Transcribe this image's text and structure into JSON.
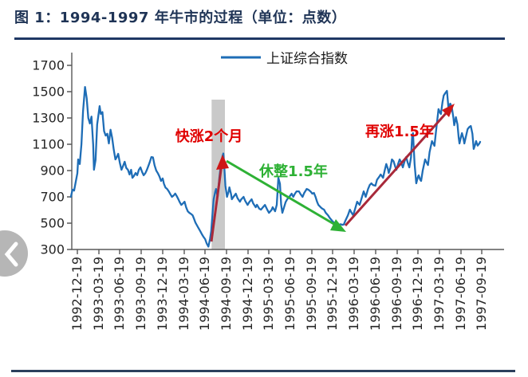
{
  "figure": {
    "title": "图 1：1994-1997 年牛市的过程（单位：点数）"
  },
  "legend": {
    "label": "上证综合指数"
  },
  "annotations": [
    {
      "id": "rally1",
      "text": "快涨2个月"
    },
    {
      "id": "consolidation",
      "text": "休整1.5年"
    },
    {
      "id": "rally2",
      "text": "再涨1.5年"
    }
  ],
  "nav": {
    "prev_icon": "chevron-left"
  },
  "colors": {
    "line": "#1e6db6",
    "band": "#c9c9c9",
    "rally_text": "#e00000",
    "consolidation_green": "#2eb135",
    "arrow_shaft": "#a8293a",
    "arrow_head": "#ce1717",
    "title_navy": "#1f3456",
    "rule_navy": "#1f3864"
  },
  "chart_data": {
    "type": "line",
    "title": "图 1：1994-1997 年牛市的过程（单位：点数）",
    "ylabel": "",
    "xlabel": "",
    "ylim": [
      300,
      1700
    ],
    "grid": false,
    "legend_position": "top-center",
    "y_ticks": [
      "1700",
      "1500",
      "1300",
      "1100",
      "900",
      "700",
      "500",
      "300"
    ],
    "x_ticks": [
      "1992-12-19",
      "1993-03-19",
      "1993-06-19",
      "1993-09-19",
      "1993-12-19",
      "1994-03-19",
      "1994-06-19",
      "1994-09-19",
      "1994-12-19",
      "1995-03-19",
      "1995-06-19",
      "1995-09-19",
      "1995-12-19",
      "1996-03-19",
      "1996-06-19",
      "1996-09-19",
      "1996-12-19",
      "1997-03-19",
      "1997-06-19",
      "1997-09-19"
    ],
    "highlight_band": {
      "from_frac": 0.332,
      "to_frac": 0.365
    },
    "series": [
      {
        "name": "上证综合指数",
        "points": [
          [
            -0.016,
            700
          ],
          [
            -0.012,
            755
          ],
          [
            -0.008,
            748
          ],
          [
            0.0,
            880
          ],
          [
            0.002,
            985
          ],
          [
            0.006,
            950
          ],
          [
            0.01,
            1100
          ],
          [
            0.014,
            1350
          ],
          [
            0.019,
            1536
          ],
          [
            0.023,
            1450
          ],
          [
            0.027,
            1300
          ],
          [
            0.031,
            1258
          ],
          [
            0.035,
            1310
          ],
          [
            0.039,
            1100
          ],
          [
            0.041,
            906
          ],
          [
            0.045,
            980
          ],
          [
            0.049,
            1250
          ],
          [
            0.055,
            1390
          ],
          [
            0.058,
            1330
          ],
          [
            0.062,
            1345
          ],
          [
            0.066,
            1200
          ],
          [
            0.07,
            1166
          ],
          [
            0.074,
            1180
          ],
          [
            0.078,
            1106
          ],
          [
            0.082,
            1210
          ],
          [
            0.086,
            1150
          ],
          [
            0.09,
            1060
          ],
          [
            0.094,
            985
          ],
          [
            0.097,
            1000
          ],
          [
            0.101,
            1027
          ],
          [
            0.105,
            960
          ],
          [
            0.109,
            906
          ],
          [
            0.113,
            935
          ],
          [
            0.117,
            967
          ],
          [
            0.121,
            920
          ],
          [
            0.125,
            906
          ],
          [
            0.129,
            870
          ],
          [
            0.133,
            906
          ],
          [
            0.136,
            845
          ],
          [
            0.14,
            860
          ],
          [
            0.144,
            882
          ],
          [
            0.148,
            865
          ],
          [
            0.152,
            906
          ],
          [
            0.156,
            924
          ],
          [
            0.16,
            890
          ],
          [
            0.164,
            864
          ],
          [
            0.168,
            880
          ],
          [
            0.172,
            906
          ],
          [
            0.175,
            930
          ],
          [
            0.179,
            965
          ],
          [
            0.183,
            1003
          ],
          [
            0.187,
            1000
          ],
          [
            0.191,
            940
          ],
          [
            0.195,
            900
          ],
          [
            0.199,
            880
          ],
          [
            0.203,
            855
          ],
          [
            0.207,
            821
          ],
          [
            0.211,
            840
          ],
          [
            0.214,
            800
          ],
          [
            0.218,
            770
          ],
          [
            0.222,
            760
          ],
          [
            0.226,
            742
          ],
          [
            0.23,
            720
          ],
          [
            0.234,
            700
          ],
          [
            0.238,
            710
          ],
          [
            0.242,
            725
          ],
          [
            0.246,
            705
          ],
          [
            0.25,
            680
          ],
          [
            0.253,
            660
          ],
          [
            0.257,
            639
          ],
          [
            0.261,
            650
          ],
          [
            0.265,
            663
          ],
          [
            0.269,
            620
          ],
          [
            0.273,
            590
          ],
          [
            0.277,
            579
          ],
          [
            0.281,
            570
          ],
          [
            0.285,
            560
          ],
          [
            0.289,
            530
          ],
          [
            0.292,
            505
          ],
          [
            0.296,
            482
          ],
          [
            0.3,
            460
          ],
          [
            0.304,
            439
          ],
          [
            0.308,
            415
          ],
          [
            0.312,
            395
          ],
          [
            0.316,
            379
          ],
          [
            0.32,
            345
          ],
          [
            0.324,
            322
          ],
          [
            0.328,
            380
          ],
          [
            0.331,
            439
          ],
          [
            0.335,
            600
          ],
          [
            0.337,
            682
          ],
          [
            0.341,
            740
          ],
          [
            0.343,
            760
          ],
          [
            0.347,
            700
          ],
          [
            0.351,
            845
          ],
          [
            0.355,
            950
          ],
          [
            0.359,
            1010
          ],
          [
            0.361,
            1030
          ],
          [
            0.364,
            900
          ],
          [
            0.366,
            785
          ],
          [
            0.37,
            700
          ],
          [
            0.374,
            740
          ],
          [
            0.376,
            773
          ],
          [
            0.38,
            720
          ],
          [
            0.382,
            682
          ],
          [
            0.386,
            700
          ],
          [
            0.392,
            724
          ],
          [
            0.396,
            690
          ],
          [
            0.402,
            663
          ],
          [
            0.405,
            680
          ],
          [
            0.411,
            700
          ],
          [
            0.415,
            670
          ],
          [
            0.421,
            639
          ],
          [
            0.425,
            660
          ],
          [
            0.431,
            682
          ],
          [
            0.435,
            650
          ],
          [
            0.441,
            621
          ],
          [
            0.444,
            640
          ],
          [
            0.45,
            610
          ],
          [
            0.454,
            603
          ],
          [
            0.46,
            625
          ],
          [
            0.464,
            639
          ],
          [
            0.47,
            600
          ],
          [
            0.474,
            579
          ],
          [
            0.48,
            600
          ],
          [
            0.483,
            621
          ],
          [
            0.489,
            590
          ],
          [
            0.493,
            640
          ],
          [
            0.496,
            790
          ],
          [
            0.497,
            845
          ],
          [
            0.501,
            800
          ],
          [
            0.504,
            640
          ],
          [
            0.507,
            579
          ],
          [
            0.511,
            620
          ],
          [
            0.515,
            660
          ],
          [
            0.519,
            682
          ],
          [
            0.524,
            700
          ],
          [
            0.53,
            724
          ],
          [
            0.534,
            700
          ],
          [
            0.538,
            724
          ],
          [
            0.542,
            742
          ],
          [
            0.548,
            742
          ],
          [
            0.552,
            720
          ],
          [
            0.557,
            700
          ],
          [
            0.561,
            730
          ],
          [
            0.567,
            760
          ],
          [
            0.571,
            755
          ],
          [
            0.577,
            740
          ],
          [
            0.581,
            724
          ],
          [
            0.585,
            730
          ],
          [
            0.589,
            700
          ],
          [
            0.593,
            660
          ],
          [
            0.596,
            639
          ],
          [
            0.602,
            620
          ],
          [
            0.606,
            610
          ],
          [
            0.61,
            603
          ],
          [
            0.614,
            580
          ],
          [
            0.62,
            560
          ],
          [
            0.624,
            540
          ],
          [
            0.63,
            518
          ],
          [
            0.634,
            505
          ],
          [
            0.639,
            500
          ],
          [
            0.643,
            490
          ],
          [
            0.647,
            485
          ],
          [
            0.651,
            492
          ],
          [
            0.655,
            487
          ],
          [
            0.659,
            490
          ],
          [
            0.663,
            520
          ],
          [
            0.669,
            560
          ],
          [
            0.674,
            603
          ],
          [
            0.678,
            580
          ],
          [
            0.682,
            560
          ],
          [
            0.686,
            600
          ],
          [
            0.692,
            663
          ],
          [
            0.698,
            639
          ],
          [
            0.704,
            700
          ],
          [
            0.708,
            742
          ],
          [
            0.713,
            700
          ],
          [
            0.719,
            760
          ],
          [
            0.723,
            790
          ],
          [
            0.727,
            803
          ],
          [
            0.731,
            790
          ],
          [
            0.737,
            785
          ],
          [
            0.741,
            830
          ],
          [
            0.747,
            855
          ],
          [
            0.75,
            870
          ],
          [
            0.756,
            845
          ],
          [
            0.76,
            900
          ],
          [
            0.764,
            950
          ],
          [
            0.768,
            912
          ],
          [
            0.77,
            882
          ],
          [
            0.774,
            920
          ],
          [
            0.778,
            985
          ],
          [
            0.782,
            970
          ],
          [
            0.786,
            930
          ],
          [
            0.789,
            906
          ],
          [
            0.793,
            950
          ],
          [
            0.797,
            985
          ],
          [
            0.801,
            960
          ],
          [
            0.805,
            924
          ],
          [
            0.809,
            970
          ],
          [
            0.813,
            1003
          ],
          [
            0.817,
            960
          ],
          [
            0.821,
            924
          ],
          [
            0.825,
            1000
          ],
          [
            0.828,
            1167
          ],
          [
            0.83,
            1185
          ],
          [
            0.834,
            950
          ],
          [
            0.838,
            803
          ],
          [
            0.842,
            850
          ],
          [
            0.844,
            864
          ],
          [
            0.848,
            830
          ],
          [
            0.85,
            821
          ],
          [
            0.854,
            900
          ],
          [
            0.86,
            985
          ],
          [
            0.864,
            960
          ],
          [
            0.867,
            942
          ],
          [
            0.871,
            1040
          ],
          [
            0.877,
            1124
          ],
          [
            0.881,
            1100
          ],
          [
            0.883,
            1088
          ],
          [
            0.887,
            1200
          ],
          [
            0.893,
            1367
          ],
          [
            0.897,
            1340
          ],
          [
            0.899,
            1330
          ],
          [
            0.903,
            1420
          ],
          [
            0.906,
            1470
          ],
          [
            0.91,
            1490
          ],
          [
            0.914,
            1506
          ],
          [
            0.918,
            1367
          ],
          [
            0.922,
            1409
          ],
          [
            0.926,
            1380
          ],
          [
            0.93,
            1300
          ],
          [
            0.932,
            1245
          ],
          [
            0.936,
            1306
          ],
          [
            0.94,
            1250
          ],
          [
            0.943,
            1150
          ],
          [
            0.945,
            1106
          ],
          [
            0.949,
            1160
          ],
          [
            0.951,
            1185
          ],
          [
            0.955,
            1140
          ],
          [
            0.957,
            1106
          ],
          [
            0.961,
            1160
          ],
          [
            0.965,
            1215
          ],
          [
            0.969,
            1230
          ],
          [
            0.973,
            1239
          ],
          [
            0.977,
            1180
          ],
          [
            0.98,
            1064
          ],
          [
            0.984,
            1100
          ],
          [
            0.986,
            1124
          ],
          [
            0.99,
            1090
          ],
          [
            0.994,
            1106
          ],
          [
            0.996,
            1118
          ]
        ]
      }
    ]
  }
}
